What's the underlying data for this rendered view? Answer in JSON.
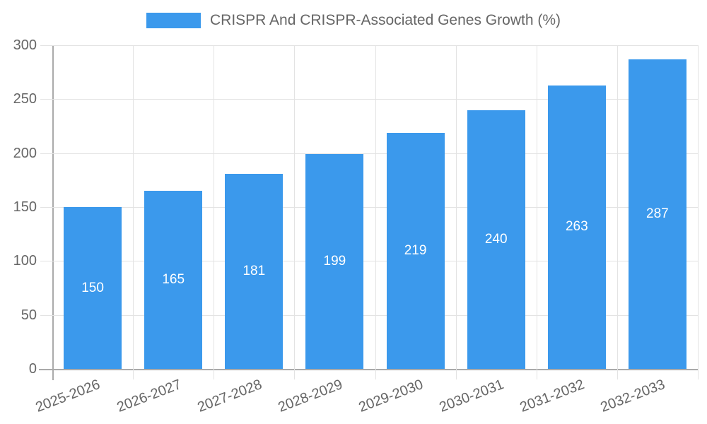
{
  "legend": {
    "label": "CRISPR And CRISPR-Associated Genes Growth (%)"
  },
  "colors": {
    "bar": "#3b99ec",
    "axis": "#aaaaaa",
    "grid": "#e3e3e3",
    "tick_text": "#666666",
    "bar_label": "#ffffff"
  },
  "chart_data": {
    "type": "bar",
    "title": "CRISPR And CRISPR-Associated Genes Growth (%)",
    "categories": [
      "2025-2026",
      "2026-2027",
      "2027-2028",
      "2028-2029",
      "2029-2030",
      "2030-2031",
      "2031-2032",
      "2032-2033"
    ],
    "values": [
      150,
      165,
      181,
      199,
      219,
      240,
      263,
      287
    ],
    "xlabel": "",
    "ylabel": "",
    "ylim": [
      0,
      300
    ],
    "yticks": [
      0,
      50,
      100,
      150,
      200,
      250,
      300
    ],
    "grid": true,
    "legend_position": "top",
    "bar_label_position": "inside-center"
  }
}
